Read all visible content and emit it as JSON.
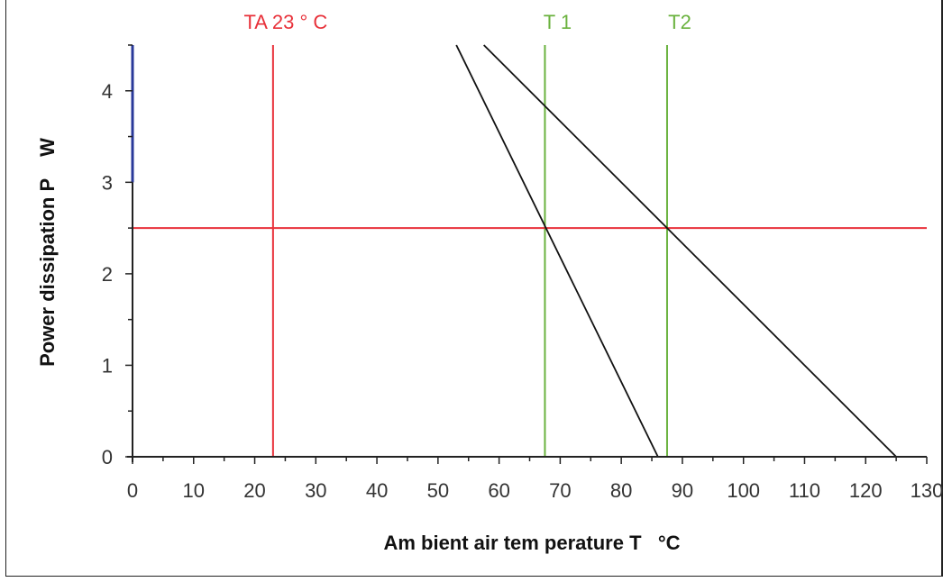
{
  "chart_data": {
    "type": "line",
    "title": "",
    "xlabel": "Am bient air tem perature T   °C",
    "ylabel": "Power dissipation P    W",
    "xlim": [
      0,
      130
    ],
    "ylim": [
      0,
      4.5
    ],
    "x_ticks": [
      "0",
      "10",
      "20",
      "30",
      "40",
      "50",
      "60",
      "70",
      "80",
      "90",
      "100",
      "110",
      "120",
      "130"
    ],
    "y_ticks": [
      "0",
      "1",
      "2",
      "3",
      "4"
    ],
    "grid": false,
    "series": [
      {
        "x": [
          53,
          86
        ],
        "y": [
          4.5,
          0
        ],
        "color": "#111111"
      },
      {
        "x": [
          57.5,
          125
        ],
        "y": [
          4.5,
          0
        ],
        "color": "#111111"
      }
    ],
    "reference_lines": [
      {
        "orientation": "vertical",
        "x": 23,
        "label": "TA 23 ° C",
        "color": "#e8313a"
      },
      {
        "orientation": "vertical",
        "x": 67.5,
        "label": "T 1",
        "color": "#6ab23e"
      },
      {
        "orientation": "vertical",
        "x": 87.5,
        "label": "T2",
        "color": "#6ab23e"
      },
      {
        "orientation": "horizontal",
        "y": 2.5,
        "label": "",
        "color": "#e8313a"
      }
    ],
    "axis_highlight": {
      "y_from": 3,
      "y_to": 4.5,
      "color": "#2a3a9a"
    }
  }
}
